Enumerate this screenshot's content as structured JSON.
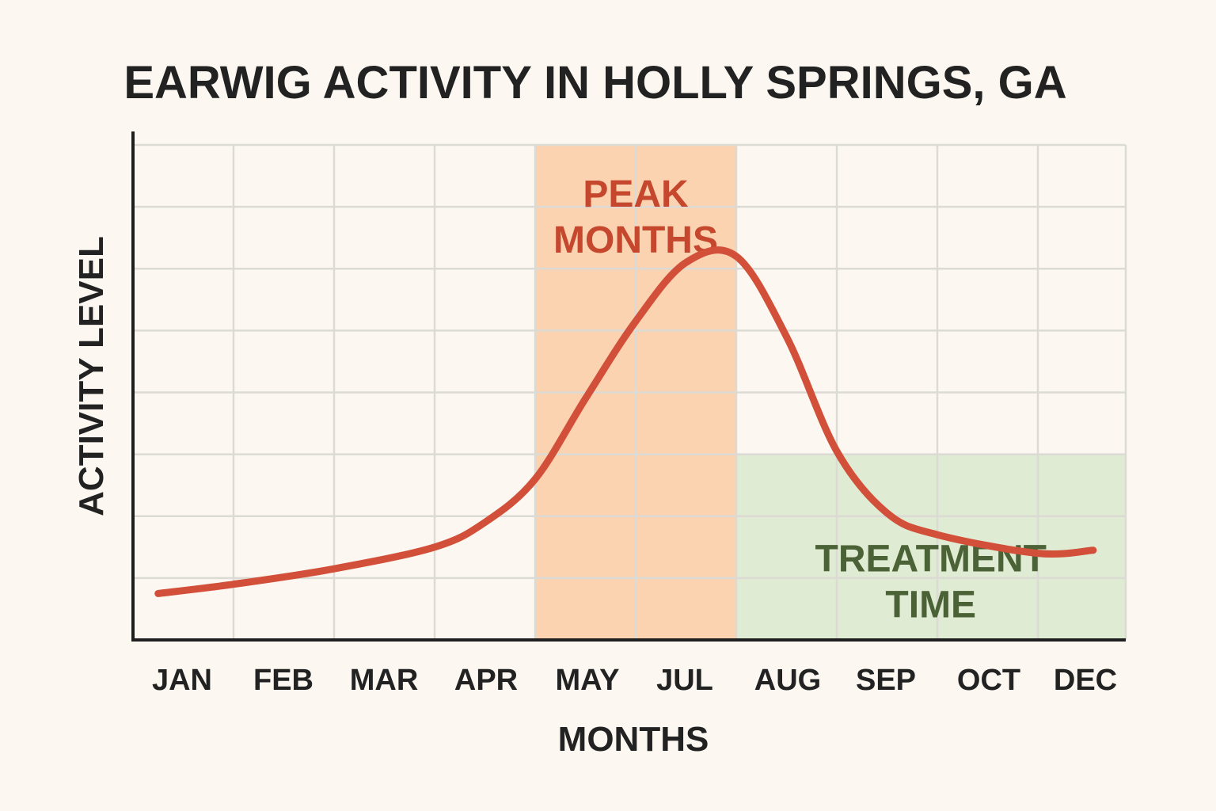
{
  "chart_data": {
    "type": "line",
    "title": "EARWIG ACTIVITY IN HOLLY SPRINGS, GA",
    "xlabel": "MONTHS",
    "ylabel": "ACTIVITY LEVEL",
    "categories": [
      "JAN",
      "FEB",
      "MAR",
      "APR",
      "MAY",
      "JUL",
      "AUG",
      "SEP",
      "OCT",
      "DEC"
    ],
    "ylim": [
      0,
      8
    ],
    "grid": true,
    "series": [
      {
        "color": "#d2503a",
        "x": [
          0.25,
          1.0,
          2.0,
          3.0,
          3.5,
          4.0,
          4.5,
          5.0,
          5.5,
          6.0,
          6.5,
          7.0,
          7.5,
          8.0,
          9.0,
          9.55
        ],
        "values": [
          0.75,
          0.9,
          1.15,
          1.5,
          1.9,
          2.6,
          3.9,
          5.15,
          6.1,
          6.2,
          4.9,
          3.05,
          2.05,
          1.7,
          1.4,
          1.45
        ]
      }
    ],
    "bands": [
      {
        "label_lines": [
          "PEAK",
          "MONTHS"
        ],
        "x_start": 4.0,
        "x_end": 6.0,
        "y_start": 0,
        "y_end": 8,
        "color": "#fbd3b0",
        "text_color": "#c4472e"
      },
      {
        "label_lines": [
          "TREATMENT",
          "TIME"
        ],
        "x_start": 6.0,
        "x_end": 9.87,
        "y_start": 0,
        "y_end": 3,
        "color": "#dfebd2",
        "text_color": "#4b6136"
      }
    ],
    "colors": {
      "background": "#fcf8f1",
      "grid": "#dcdad4",
      "axis": "#1f1f1f",
      "text": "#222222"
    }
  }
}
